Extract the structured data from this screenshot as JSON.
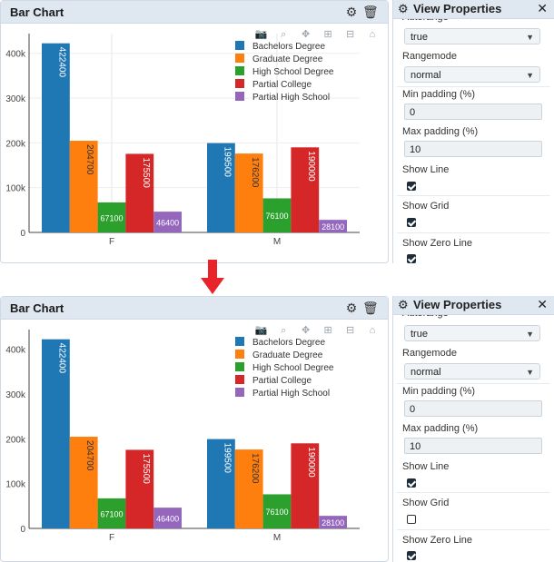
{
  "chart_panel": {
    "title": "Bar Chart"
  },
  "props_panel": {
    "title": "View Properties",
    "cut_label": "Autorange",
    "autorange_value": "true",
    "rangemode_label": "Rangemode",
    "rangemode_value": "normal",
    "min_padding_label": "Min padding (%)",
    "min_padding_value": "0",
    "max_padding_label": "Max padding (%)",
    "max_padding_value": "10",
    "show_line_label": "Show Line",
    "show_grid_label": "Show Grid",
    "show_zero_line_label": "Show Zero Line"
  },
  "states": [
    {
      "show_line": true,
      "show_grid": true,
      "show_zero_line": true
    },
    {
      "show_line": true,
      "show_grid": false,
      "show_zero_line": true
    }
  ],
  "chart_data": {
    "type": "bar",
    "categories": [
      "F",
      "M"
    ],
    "series": [
      {
        "name": "Bachelors Degree",
        "color": "#1f77b4",
        "values": [
          422400,
          199500
        ]
      },
      {
        "name": "Graduate Degree",
        "color": "#ff7f0e",
        "values": [
          204700,
          176200
        ]
      },
      {
        "name": "High School Degree",
        "color": "#2ca02c",
        "values": [
          67100,
          76100
        ]
      },
      {
        "name": "Partial College",
        "color": "#d62728",
        "values": [
          175500,
          190000
        ]
      },
      {
        "name": "Partial High School",
        "color": "#9467bd",
        "values": [
          46400,
          28100
        ]
      }
    ],
    "y_ticks": [
      "0",
      "100k",
      "200k",
      "300k",
      "400k"
    ],
    "ylim": [
      0,
      440000
    ],
    "legend_position": "top-right"
  }
}
